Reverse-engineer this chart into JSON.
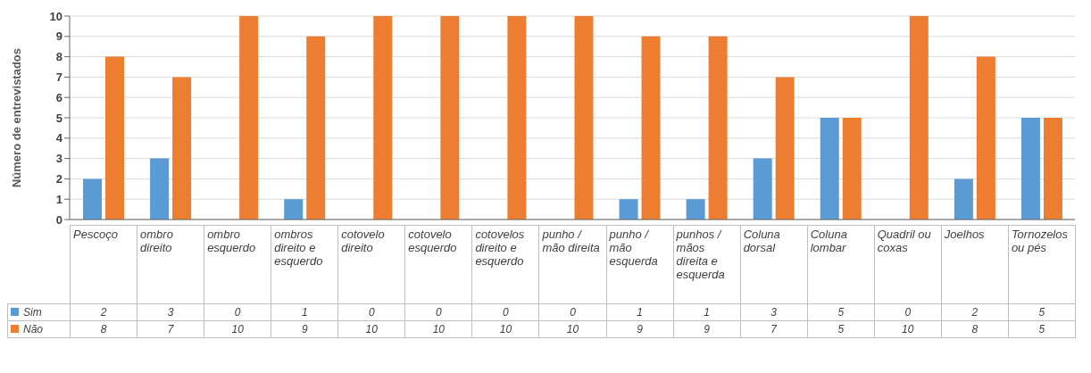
{
  "chart_data": {
    "type": "bar",
    "ylabel": "Número de entrevistados",
    "categories": [
      "Pescoço",
      "ombro direito",
      "ombro esquerdo",
      "ombros direito e esquerdo",
      "cotovelo direito",
      "cotovelo esquerdo",
      "cotovelos direito e esquerdo",
      "punho / mão direita",
      "punho / mão esquerda",
      "punhos / mãos direita e esquerda",
      "Coluna dorsal",
      "Coluna lombar",
      "Quadril ou coxas",
      "Joelhos",
      "Tornozelos ou pés"
    ],
    "series": [
      {
        "name": "Sim",
        "color": "#5b9bd5",
        "values": [
          2,
          3,
          0,
          1,
          0,
          0,
          0,
          0,
          1,
          1,
          3,
          5,
          0,
          2,
          5
        ]
      },
      {
        "name": "Não",
        "color": "#ed7d31",
        "values": [
          8,
          7,
          10,
          9,
          10,
          10,
          10,
          10,
          9,
          9,
          7,
          5,
          10,
          8,
          5
        ]
      }
    ],
    "ylim": [
      0,
      10
    ],
    "yticks": [
      0,
      1,
      2,
      3,
      4,
      5,
      6,
      7,
      8,
      9,
      10
    ],
    "grid": "y",
    "legend": "bottom",
    "data_labels": true
  }
}
